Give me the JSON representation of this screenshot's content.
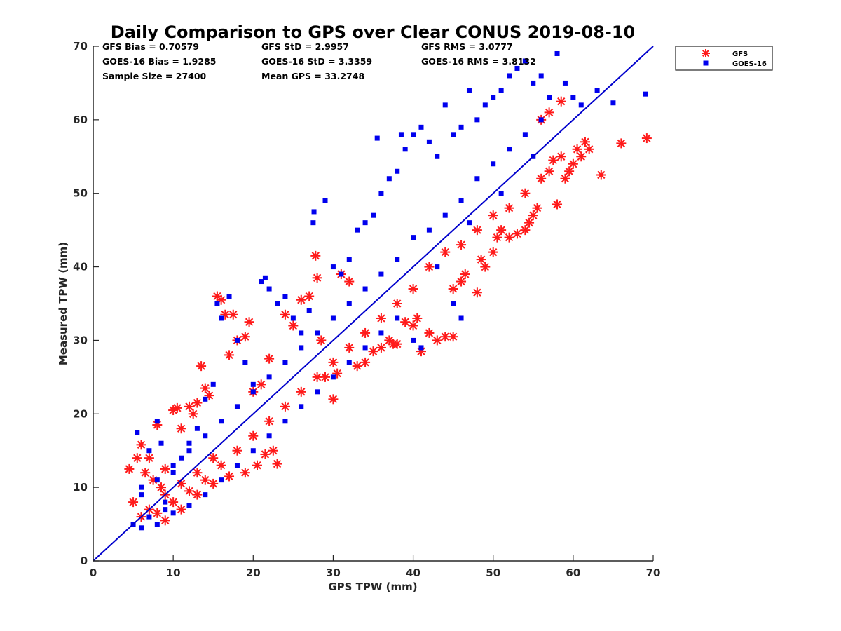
{
  "chart_data": {
    "type": "scatter",
    "title": "Daily Comparison to GPS over Clear CONUS 2019-08-10",
    "xlabel": "GPS TPW (mm)",
    "ylabel": "Measured TPW (mm)",
    "xlim": [
      0,
      70
    ],
    "ylim": [
      0,
      70
    ],
    "xticks": [
      "0",
      "10",
      "20",
      "30",
      "40",
      "50",
      "60",
      "70"
    ],
    "yticks": [
      "0",
      "10",
      "20",
      "30",
      "40",
      "50",
      "60",
      "70"
    ],
    "grid": false,
    "legend_position": "outside-top-right",
    "reference_line": {
      "type": "one-to-one",
      "color": "#0000cc"
    },
    "stats": [
      "GFS Bias = 0.70579",
      "GFS StD = 2.9957",
      "GFS RMS = 3.0777",
      "GOES-16 Bias = 1.9285",
      "GOES-16 StD = 3.3359",
      "GOES-16 RMS = 3.8132",
      "Sample Size = 27400",
      "Mean GPS = 33.2748"
    ],
    "series": [
      {
        "name": "GFS",
        "marker": "asterisk",
        "color": "#ff1a1a",
        "points": [
          [
            4.5,
            12.5
          ],
          [
            5,
            8
          ],
          [
            5.5,
            14
          ],
          [
            6,
            15.8
          ],
          [
            6.5,
            12
          ],
          [
            7,
            14
          ],
          [
            7.5,
            11
          ],
          [
            8,
            18.5
          ],
          [
            8.5,
            10
          ],
          [
            9,
            12.5
          ],
          [
            10,
            20.5
          ],
          [
            10.5,
            20.8
          ],
          [
            11,
            18
          ],
          [
            12,
            21
          ],
          [
            12.5,
            20
          ],
          [
            13,
            21.5
          ],
          [
            13.5,
            26.5
          ],
          [
            14,
            23.5
          ],
          [
            14.5,
            22.5
          ],
          [
            15.5,
            36
          ],
          [
            16,
            35.5
          ],
          [
            16.5,
            33.5
          ],
          [
            17,
            28
          ],
          [
            17.5,
            33.5
          ],
          [
            18,
            30
          ],
          [
            19,
            30.5
          ],
          [
            19.5,
            32.5
          ],
          [
            20,
            23
          ],
          [
            21,
            24
          ],
          [
            22,
            27.5
          ],
          [
            23,
            13.2
          ],
          [
            22.5,
            15
          ],
          [
            21.5,
            14.5
          ],
          [
            20.5,
            13
          ],
          [
            19,
            12
          ],
          [
            17,
            11.5
          ],
          [
            15,
            10.5
          ],
          [
            13,
            9
          ],
          [
            11,
            7
          ],
          [
            9,
            5.5
          ],
          [
            24,
            33.5
          ],
          [
            25,
            32
          ],
          [
            26,
            35.5
          ],
          [
            27,
            36
          ],
          [
            27.8,
            41.5
          ],
          [
            28,
            38.5
          ],
          [
            28.5,
            30
          ],
          [
            29,
            25
          ],
          [
            30,
            22
          ],
          [
            30.5,
            25.5
          ],
          [
            31,
            39
          ],
          [
            32,
            38
          ],
          [
            33,
            26.5
          ],
          [
            34,
            27
          ],
          [
            35,
            28.5
          ],
          [
            36,
            29
          ],
          [
            37,
            30
          ],
          [
            37.5,
            29.5
          ],
          [
            38,
            29.5
          ],
          [
            39,
            32.5
          ],
          [
            40,
            32
          ],
          [
            40.5,
            33
          ],
          [
            41,
            28.5
          ],
          [
            42,
            31
          ],
          [
            43,
            30
          ],
          [
            44,
            30.5
          ],
          [
            45,
            30.5
          ],
          [
            45,
            37
          ],
          [
            46,
            38
          ],
          [
            46.5,
            39
          ],
          [
            48,
            36.5
          ],
          [
            48.5,
            41
          ],
          [
            49,
            40
          ],
          [
            50,
            42
          ],
          [
            50.5,
            44
          ],
          [
            51,
            45
          ],
          [
            52,
            44
          ],
          [
            53,
            44.5
          ],
          [
            54,
            45
          ],
          [
            54.5,
            46
          ],
          [
            55,
            47
          ],
          [
            55.5,
            48
          ],
          [
            56,
            52
          ],
          [
            57,
            53
          ],
          [
            57.5,
            54.5
          ],
          [
            58,
            48.5
          ],
          [
            58.5,
            55
          ],
          [
            59,
            52
          ],
          [
            59.5,
            53
          ],
          [
            60,
            54
          ],
          [
            60.5,
            56
          ],
          [
            61,
            55
          ],
          [
            61.5,
            57
          ],
          [
            62,
            56
          ],
          [
            63.5,
            52.5
          ],
          [
            66,
            56.8
          ],
          [
            69.2,
            57.5
          ],
          [
            58.5,
            62.5
          ],
          [
            57,
            61
          ],
          [
            56,
            60
          ],
          [
            42,
            40
          ],
          [
            44,
            42
          ],
          [
            46,
            43
          ],
          [
            48,
            45
          ],
          [
            50,
            47
          ],
          [
            52,
            48
          ],
          [
            54,
            50
          ],
          [
            40,
            37
          ],
          [
            38,
            35
          ],
          [
            36,
            33
          ],
          [
            34,
            31
          ],
          [
            32,
            29
          ],
          [
            30,
            27
          ],
          [
            28,
            25
          ],
          [
            26,
            23
          ],
          [
            24,
            21
          ],
          [
            22,
            19
          ],
          [
            20,
            17
          ],
          [
            18,
            15
          ],
          [
            16,
            13
          ],
          [
            14,
            11
          ],
          [
            12,
            9.5
          ],
          [
            10,
            8
          ],
          [
            8,
            6.5
          ],
          [
            6,
            6
          ],
          [
            7,
            7
          ],
          [
            9,
            9
          ],
          [
            11,
            10.5
          ],
          [
            13,
            12
          ],
          [
            15,
            14
          ]
        ]
      },
      {
        "name": "GOES-16",
        "marker": "square",
        "color": "#0000ee",
        "points": [
          [
            5,
            5
          ],
          [
            5.5,
            17.5
          ],
          [
            6,
            10
          ],
          [
            7,
            15
          ],
          [
            8,
            19
          ],
          [
            8.5,
            16
          ],
          [
            9,
            8
          ],
          [
            10,
            12
          ],
          [
            11,
            14
          ],
          [
            12,
            16
          ],
          [
            13,
            18
          ],
          [
            14,
            22
          ],
          [
            15,
            24
          ],
          [
            15.5,
            35
          ],
          [
            16,
            33
          ],
          [
            17,
            36
          ],
          [
            18,
            30
          ],
          [
            19,
            27
          ],
          [
            20,
            24
          ],
          [
            21,
            38
          ],
          [
            21.5,
            38.5
          ],
          [
            22,
            37
          ],
          [
            23,
            35
          ],
          [
            24,
            36
          ],
          [
            25,
            33
          ],
          [
            26,
            31
          ],
          [
            27,
            34
          ],
          [
            27.5,
            46
          ],
          [
            27.6,
            47.5
          ],
          [
            29,
            49
          ],
          [
            30,
            40
          ],
          [
            31,
            39
          ],
          [
            32,
            41
          ],
          [
            33,
            45
          ],
          [
            34,
            46
          ],
          [
            35,
            47
          ],
          [
            35.5,
            57.5
          ],
          [
            36,
            50
          ],
          [
            37,
            52
          ],
          [
            38,
            53
          ],
          [
            38.5,
            58
          ],
          [
            39,
            56
          ],
          [
            40,
            58
          ],
          [
            41,
            59
          ],
          [
            42,
            57
          ],
          [
            43,
            55
          ],
          [
            44,
            62
          ],
          [
            45,
            58
          ],
          [
            46,
            59
          ],
          [
            47,
            64
          ],
          [
            48,
            60
          ],
          [
            49,
            62
          ],
          [
            50,
            63
          ],
          [
            51,
            64
          ],
          [
            52,
            66
          ],
          [
            53,
            67
          ],
          [
            54,
            68
          ],
          [
            55,
            65
          ],
          [
            56,
            66
          ],
          [
            57,
            63
          ],
          [
            58,
            69
          ],
          [
            59,
            65
          ],
          [
            60,
            63
          ],
          [
            61,
            62
          ],
          [
            63,
            64
          ],
          [
            65,
            62.3
          ],
          [
            69,
            63.5
          ],
          [
            45,
            35
          ],
          [
            46,
            33
          ],
          [
            41,
            29
          ],
          [
            40,
            30
          ],
          [
            38,
            33
          ],
          [
            36,
            31
          ],
          [
            34,
            29
          ],
          [
            32,
            27
          ],
          [
            30,
            25
          ],
          [
            28,
            23
          ],
          [
            26,
            21
          ],
          [
            24,
            19
          ],
          [
            22,
            17
          ],
          [
            20,
            15
          ],
          [
            18,
            13
          ],
          [
            16,
            11
          ],
          [
            14,
            9
          ],
          [
            12,
            7.5
          ],
          [
            10,
            6.5
          ],
          [
            8,
            5
          ],
          [
            6,
            4.5
          ],
          [
            7,
            6
          ],
          [
            9,
            7
          ],
          [
            42,
            45
          ],
          [
            44,
            47
          ],
          [
            46,
            49
          ],
          [
            48,
            52
          ],
          [
            50,
            54
          ],
          [
            52,
            56
          ],
          [
            54,
            58
          ],
          [
            56,
            60
          ],
          [
            40,
            44
          ],
          [
            38,
            41
          ],
          [
            36,
            39
          ],
          [
            34,
            37
          ],
          [
            32,
            35
          ],
          [
            30,
            33
          ],
          [
            28,
            31
          ],
          [
            26,
            29
          ],
          [
            24,
            27
          ],
          [
            22,
            25
          ],
          [
            20,
            23
          ],
          [
            18,
            21
          ],
          [
            16,
            19
          ],
          [
            14,
            17
          ],
          [
            12,
            15
          ],
          [
            10,
            13
          ],
          [
            8,
            11
          ],
          [
            6,
            9
          ],
          [
            43,
            40
          ],
          [
            47,
            46
          ],
          [
            51,
            50
          ],
          [
            55,
            55
          ]
        ]
      }
    ]
  }
}
